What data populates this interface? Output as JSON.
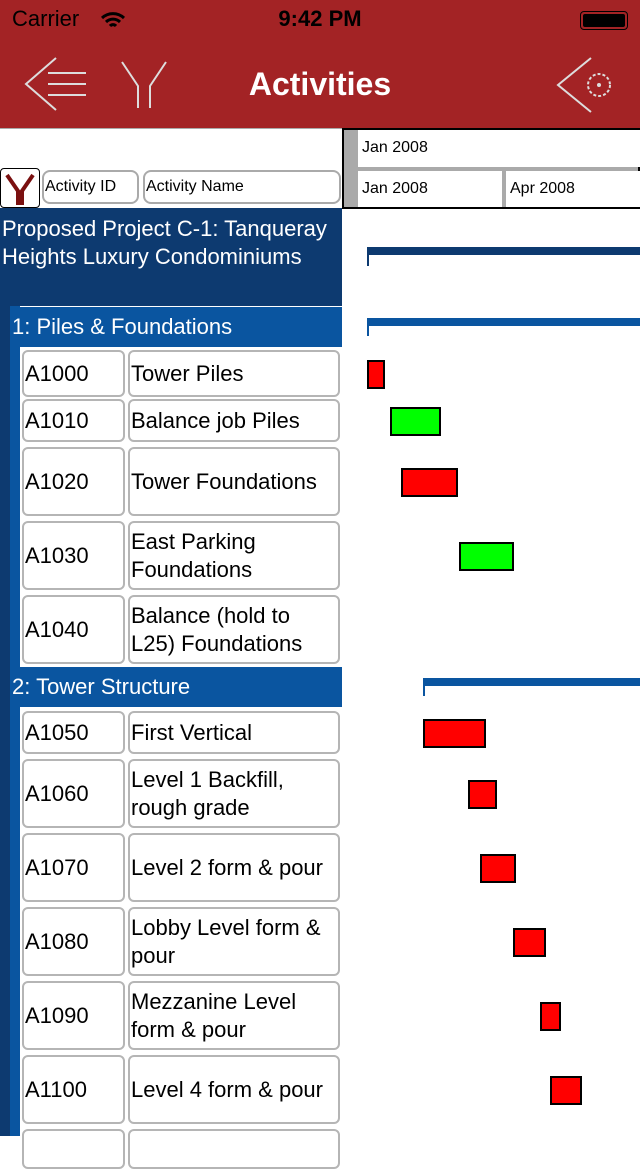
{
  "status_bar": {
    "carrier": "Carrier",
    "time": "9:42 PM"
  },
  "nav": {
    "title": "Activities",
    "icons": [
      "back-list-icon",
      "filter-icon",
      "settings-gear-icon"
    ]
  },
  "columns": {
    "id": "Activity ID",
    "name": "Activity Name"
  },
  "timescale": {
    "top": "Jan 2008",
    "bottom": [
      "Jan 2008",
      "Apr 2008"
    ]
  },
  "colors": {
    "nav": "#a32325",
    "project": "#0d3a70",
    "wbs": "#0a55a0",
    "in_progress": "#00ff00",
    "not_started": "#ff0000"
  },
  "project": {
    "name": "Proposed Project C-1: Tanqueray Heights Luxury Condominiums"
  },
  "wbs": [
    {
      "name": "1: Piles & Foundations"
    },
    {
      "name": "2: Tower Structure"
    }
  ],
  "activities": [
    {
      "id": "A1000",
      "name": "Tower Piles",
      "status": "red"
    },
    {
      "id": "A1010",
      "name": "Balance job Piles",
      "status": "green"
    },
    {
      "id": "A1020",
      "name": "Tower Foundations",
      "status": "red"
    },
    {
      "id": "A1030",
      "name": "East Parking Foundations",
      "status": "green"
    },
    {
      "id": "A1040",
      "name": "Balance (hold to L25) Foundations",
      "status": "none"
    },
    {
      "id": "A1050",
      "name": "First Vertical",
      "status": "red"
    },
    {
      "id": "A1060",
      "name": "Level 1 Backfill, rough grade",
      "status": "red"
    },
    {
      "id": "A1070",
      "name": "Level 2 form & pour",
      "status": "red"
    },
    {
      "id": "A1080",
      "name": "Lobby Level form & pour",
      "status": "red"
    },
    {
      "id": "A1090",
      "name": "Mezzanine Level form & pour",
      "status": "red"
    },
    {
      "id": "A1100",
      "name": "Level 4 form & pour",
      "status": "red"
    }
  ]
}
